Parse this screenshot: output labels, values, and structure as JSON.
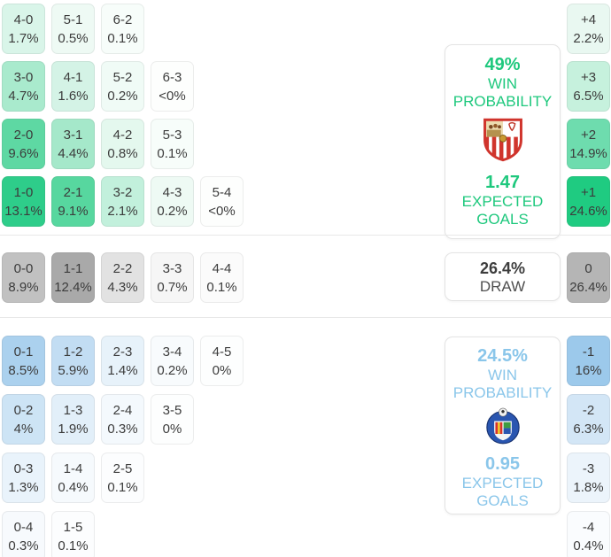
{
  "sections": {
    "home": {
      "panel": {
        "win_pct": "49%",
        "win_label": "WIN PROBABILITY",
        "xg": "1.47",
        "xg_label": "EXPECTED GOALS",
        "accent": "#1ec87d",
        "team_icon": "sevilla-crest"
      },
      "rows": [
        [
          {
            "score": "4-0",
            "pct": "1.7%",
            "bg": "#d9f5e9"
          },
          {
            "score": "5-1",
            "pct": "0.5%",
            "bg": "#eefaf4"
          },
          {
            "score": "6-2",
            "pct": "0.1%",
            "bg": "#f7fdfa"
          }
        ],
        [
          {
            "score": "3-0",
            "pct": "4.7%",
            "bg": "#a9eacd"
          },
          {
            "score": "4-1",
            "pct": "1.6%",
            "bg": "#d4f3e6"
          },
          {
            "score": "5-2",
            "pct": "0.2%",
            "bg": "#f0fbf6"
          },
          {
            "score": "6-3",
            "pct": "<0%",
            "bg": "#fdfefd"
          }
        ],
        [
          {
            "score": "2-0",
            "pct": "9.6%",
            "bg": "#5ed8a3"
          },
          {
            "score": "3-1",
            "pct": "4.4%",
            "bg": "#a5e8ca"
          },
          {
            "score": "4-2",
            "pct": "0.8%",
            "bg": "#e4f8ee"
          },
          {
            "score": "5-3",
            "pct": "0.1%",
            "bg": "#f7fdfa"
          }
        ],
        [
          {
            "score": "1-0",
            "pct": "13.1%",
            "bg": "#2ecd8a"
          },
          {
            "score": "2-1",
            "pct": "9.1%",
            "bg": "#57d79f"
          },
          {
            "score": "3-2",
            "pct": "2.1%",
            "bg": "#c2f0dc"
          },
          {
            "score": "4-3",
            "pct": "0.2%",
            "bg": "#eefaf4"
          },
          {
            "score": "5-4",
            "pct": "<0%",
            "bg": "#fdfefd"
          }
        ]
      ],
      "margin": [
        {
          "score": "+4",
          "pct": "2.2%",
          "bg": "#e9f8f1"
        },
        {
          "score": "+3",
          "pct": "6.5%",
          "bg": "#c6f1dd"
        },
        {
          "score": "+2",
          "pct": "14.9%",
          "bg": "#6edcae"
        },
        {
          "score": "+1",
          "pct": "24.6%",
          "bg": "#1fcb81"
        }
      ]
    },
    "draw": {
      "panel": {
        "pct": "26.4%",
        "label": "DRAW"
      },
      "rows": [
        [
          {
            "score": "0-0",
            "pct": "8.9%",
            "bg": "#c1c1c1"
          },
          {
            "score": "1-1",
            "pct": "12.4%",
            "bg": "#a9a9a9"
          },
          {
            "score": "2-2",
            "pct": "4.3%",
            "bg": "#e2e2e2"
          },
          {
            "score": "3-3",
            "pct": "0.7%",
            "bg": "#f6f6f6"
          },
          {
            "score": "4-4",
            "pct": "0.1%",
            "bg": "#fbfbfb"
          }
        ]
      ],
      "margin": [
        {
          "score": "0",
          "pct": "26.4%",
          "bg": "#b5b5b5"
        }
      ]
    },
    "away": {
      "panel": {
        "win_pct": "24.5%",
        "win_label": "WIN PROBABILITY",
        "xg": "0.95",
        "xg_label": "EXPECTED GOALS",
        "accent": "#8ac6ea",
        "team_icon": "getafe-crest"
      },
      "rows": [
        [
          {
            "score": "0-1",
            "pct": "8.5%",
            "bg": "#abd1ee"
          },
          {
            "score": "1-2",
            "pct": "5.9%",
            "bg": "#c2ddf3"
          },
          {
            "score": "2-3",
            "pct": "1.4%",
            "bg": "#e7f2fa"
          },
          {
            "score": "3-4",
            "pct": "0.2%",
            "bg": "#f8fbfd"
          },
          {
            "score": "4-5",
            "pct": "0%",
            "bg": "#fdfefe"
          }
        ],
        [
          {
            "score": "0-2",
            "pct": "4%",
            "bg": "#cde4f5"
          },
          {
            "score": "1-3",
            "pct": "1.9%",
            "bg": "#e2eff9"
          },
          {
            "score": "2-4",
            "pct": "0.3%",
            "bg": "#f4f9fd"
          },
          {
            "score": "3-5",
            "pct": "0%",
            "bg": "#fdfefe"
          }
        ],
        [
          {
            "score": "0-3",
            "pct": "1.3%",
            "bg": "#e9f3fb"
          },
          {
            "score": "1-4",
            "pct": "0.4%",
            "bg": "#f6fafd"
          },
          {
            "score": "2-5",
            "pct": "0.1%",
            "bg": "#fcfdfe"
          }
        ],
        [
          {
            "score": "0-4",
            "pct": "0.3%",
            "bg": "#f7fafd"
          },
          {
            "score": "1-5",
            "pct": "0.1%",
            "bg": "#fcfdfe"
          }
        ]
      ],
      "margin": [
        {
          "score": "-1",
          "pct": "16%",
          "bg": "#9cc9eb"
        },
        {
          "score": "-2",
          "pct": "6.3%",
          "bg": "#d3e6f6"
        },
        {
          "score": "-3",
          "pct": "1.8%",
          "bg": "#ecf4fb"
        },
        {
          "score": "-4",
          "pct": "0.4%",
          "bg": "#fafcfe"
        }
      ]
    }
  },
  "chart_data": {
    "type": "heatmap",
    "title": "Correct score and goal margin probability matrix",
    "home_win": {
      "probability_pct": 49,
      "expected_goals": 1.47,
      "team_icon": "sevilla-crest",
      "scores": [
        {
          "score": "4-0",
          "pct": 1.7
        },
        {
          "score": "5-1",
          "pct": 0.5
        },
        {
          "score": "6-2",
          "pct": 0.1
        },
        {
          "score": "3-0",
          "pct": 4.7
        },
        {
          "score": "4-1",
          "pct": 1.6
        },
        {
          "score": "5-2",
          "pct": 0.2
        },
        {
          "score": "6-3",
          "pct": 0
        },
        {
          "score": "2-0",
          "pct": 9.6
        },
        {
          "score": "3-1",
          "pct": 4.4
        },
        {
          "score": "4-2",
          "pct": 0.8
        },
        {
          "score": "5-3",
          "pct": 0.1
        },
        {
          "score": "1-0",
          "pct": 13.1
        },
        {
          "score": "2-1",
          "pct": 9.1
        },
        {
          "score": "3-2",
          "pct": 2.1
        },
        {
          "score": "4-3",
          "pct": 0.2
        },
        {
          "score": "5-4",
          "pct": 0
        }
      ]
    },
    "draw": {
      "probability_pct": 26.4,
      "scores": [
        {
          "score": "0-0",
          "pct": 8.9
        },
        {
          "score": "1-1",
          "pct": 12.4
        },
        {
          "score": "2-2",
          "pct": 4.3
        },
        {
          "score": "3-3",
          "pct": 0.7
        },
        {
          "score": "4-4",
          "pct": 0.1
        }
      ]
    },
    "away_win": {
      "probability_pct": 24.5,
      "expected_goals": 0.95,
      "team_icon": "getafe-crest",
      "scores": [
        {
          "score": "0-1",
          "pct": 8.5
        },
        {
          "score": "1-2",
          "pct": 5.9
        },
        {
          "score": "2-3",
          "pct": 1.4
        },
        {
          "score": "3-4",
          "pct": 0.2
        },
        {
          "score": "4-5",
          "pct": 0
        },
        {
          "score": "0-2",
          "pct": 4
        },
        {
          "score": "1-3",
          "pct": 1.9
        },
        {
          "score": "2-4",
          "pct": 0.3
        },
        {
          "score": "3-5",
          "pct": 0
        },
        {
          "score": "0-3",
          "pct": 1.3
        },
        {
          "score": "1-4",
          "pct": 0.4
        },
        {
          "score": "2-5",
          "pct": 0.1
        },
        {
          "score": "0-4",
          "pct": 0.3
        },
        {
          "score": "1-5",
          "pct": 0.1
        }
      ]
    },
    "goal_margins": [
      {
        "margin": "+4",
        "pct": 2.2
      },
      {
        "margin": "+3",
        "pct": 6.5
      },
      {
        "margin": "+2",
        "pct": 14.9
      },
      {
        "margin": "+1",
        "pct": 24.6
      },
      {
        "margin": "0",
        "pct": 26.4
      },
      {
        "margin": "-1",
        "pct": 16
      },
      {
        "margin": "-2",
        "pct": 6.3
      },
      {
        "margin": "-3",
        "pct": 1.8
      },
      {
        "margin": "-4",
        "pct": 0.4
      }
    ],
    "legend_position": "none",
    "grid": false
  }
}
